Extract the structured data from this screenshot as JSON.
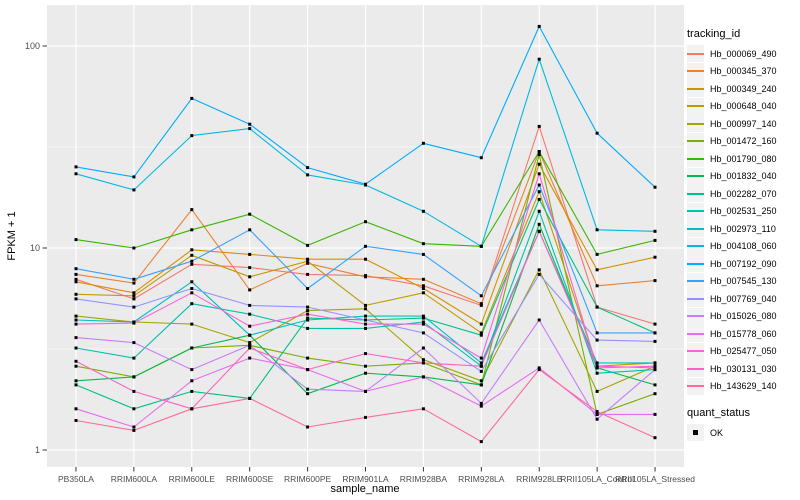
{
  "chart_data": {
    "type": "line",
    "title": "",
    "xlabel": "sample_name",
    "ylabel": "FPKM + 1",
    "x_scale": "categorical",
    "y_scale": "log10",
    "y_ticks": [
      1,
      10,
      100
    ],
    "y_tick_labels": [
      "1",
      "10",
      "100"
    ],
    "y_minor_ticks": [
      3.1623,
      31.623
    ],
    "ylim": [
      0.9,
      160
    ],
    "grid": true,
    "legend_position": "right",
    "legend_title": "tracking_id",
    "point_legend": {
      "title": "quant_status",
      "items": [
        {
          "label": "OK",
          "shape": "black-square"
        }
      ]
    },
    "style": {
      "panel_bg": "#EBEBEB",
      "grid_color": "#FFFFFF",
      "tick_label_color": "#4D4D4D",
      "axis_title_color": "#000000",
      "point_color": "#000000",
      "legend_key_bg": "#F2F2F2"
    },
    "categories": [
      "PB350LA",
      "RRIM600LA",
      "RRIM600LE",
      "RRIM600SE",
      "RRIM600PE",
      "RRIM901LA",
      "RRIM928BA",
      "RRIM928LA",
      "RRIM928LB",
      "RRII105LA_Control",
      "RRII105LA_Stressed"
    ],
    "series": [
      {
        "name": "Hb_000069_490",
        "color": "#F8766D",
        "values": [
          7.0,
          5.6,
          8.3,
          8.0,
          7.4,
          7.3,
          6.5,
          5.2,
          40,
          5.1,
          4.2
        ]
      },
      {
        "name": "Hb_000345_370",
        "color": "#EA8331",
        "values": [
          7.4,
          6.7,
          15.5,
          6.2,
          8.4,
          7.2,
          7.0,
          5.3,
          30,
          6.5,
          6.9
        ]
      },
      {
        "name": "Hb_000349_240",
        "color": "#D89000",
        "values": [
          6.8,
          6.0,
          9.8,
          9.3,
          8.8,
          8.8,
          6.3,
          4.2,
          26,
          7.8,
          9.0
        ]
      },
      {
        "name": "Hb_000648_040",
        "color": "#C09B00",
        "values": [
          5.9,
          5.8,
          9.2,
          7.2,
          8.6,
          5.2,
          6.0,
          3.8,
          19,
          2.6,
          2.7
        ]
      },
      {
        "name": "Hb_000997_140",
        "color": "#A3A500",
        "values": [
          4.6,
          4.3,
          4.2,
          3.4,
          4.9,
          5.0,
          2.8,
          2.2,
          7.8,
          1.95,
          2.6
        ]
      },
      {
        "name": "Hb_001472_160",
        "color": "#7CAE00",
        "values": [
          2.6,
          2.3,
          3.2,
          3.3,
          2.85,
          2.6,
          2.7,
          2.1,
          29,
          1.5,
          1.9
        ]
      },
      {
        "name": "Hb_001790_080",
        "color": "#39B600",
        "values": [
          11.0,
          10.0,
          12.3,
          14.7,
          10.3,
          13.5,
          10.5,
          10.2,
          30,
          9.3,
          10.9
        ]
      },
      {
        "name": "Hb_001832_040",
        "color": "#00BB4E",
        "values": [
          2.2,
          2.3,
          3.2,
          3.7,
          1.9,
          2.4,
          2.3,
          2.1,
          13.1,
          2.55,
          2.1
        ]
      },
      {
        "name": "Hb_002282_070",
        "color": "#00C087",
        "values": [
          2.1,
          1.6,
          1.95,
          1.8,
          4.5,
          4.4,
          4.5,
          3.7,
          17.4,
          5.1,
          3.8
        ]
      },
      {
        "name": "Hb_002531_250",
        "color": "#00C0AF",
        "values": [
          3.2,
          2.85,
          5.3,
          4.7,
          4.0,
          4.0,
          4.3,
          2.6,
          15.2,
          2.4,
          2.5
        ]
      },
      {
        "name": "Hb_002973_110",
        "color": "#00BFC4",
        "values": [
          4.4,
          4.3,
          6.8,
          3.7,
          4.4,
          4.6,
          4.6,
          2.7,
          12.1,
          2.7,
          2.7
        ]
      },
      {
        "name": "Hb_004108_060",
        "color": "#00BAE0",
        "values": [
          23.3,
          19.4,
          36,
          39,
          23,
          20.5,
          15.2,
          10.2,
          86,
          12.3,
          12.1
        ]
      },
      {
        "name": "Hb_007192_090",
        "color": "#00ACFC",
        "values": [
          25.2,
          22.5,
          55,
          41,
          25,
          20.7,
          33,
          28,
          125,
          37,
          20
        ]
      },
      {
        "name": "Hb_007545_130",
        "color": "#35A2FF",
        "values": [
          7.9,
          7.0,
          8.6,
          12.3,
          6.3,
          10.2,
          9.3,
          5.8,
          20.5,
          3.8,
          3.8
        ]
      },
      {
        "name": "Hb_007769_040",
        "color": "#9590FF",
        "values": [
          5.6,
          5.1,
          6.3,
          5.2,
          5.1,
          4.4,
          3.8,
          2.45,
          7.4,
          3.5,
          3.45
        ]
      },
      {
        "name": "Hb_015026_080",
        "color": "#C77CFF",
        "values": [
          3.6,
          3.4,
          2.5,
          3.3,
          2.0,
          1.95,
          3.2,
          1.7,
          4.4,
          1.42,
          2.5
        ]
      },
      {
        "name": "Hb_015778_060",
        "color": "#E76BF3",
        "values": [
          1.6,
          1.3,
          2.2,
          2.85,
          2.5,
          1.95,
          2.3,
          1.65,
          2.55,
          1.5,
          1.5
        ]
      },
      {
        "name": "Hb_025477_050",
        "color": "#FA62DB",
        "values": [
          4.2,
          4.25,
          6.0,
          4.1,
          4.7,
          4.2,
          4.2,
          2.85,
          23.3,
          2.55,
          2.6
        ]
      },
      {
        "name": "Hb_030131_030",
        "color": "#FF61C3",
        "values": [
          2.75,
          1.95,
          1.6,
          3.2,
          2.5,
          3.0,
          2.7,
          2.6,
          12.1,
          2.6,
          2.55
        ]
      },
      {
        "name": "Hb_143629_140",
        "color": "#FF6A98",
        "values": [
          1.4,
          1.25,
          1.6,
          1.8,
          1.3,
          1.45,
          1.6,
          1.1,
          2.5,
          1.55,
          1.15
        ]
      }
    ]
  }
}
